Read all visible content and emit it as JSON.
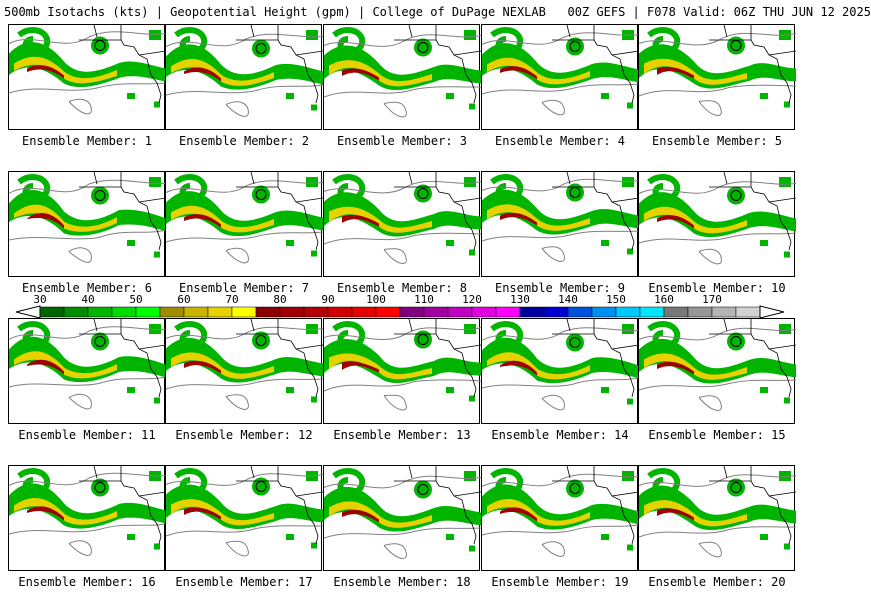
{
  "header": {
    "title": "500mb Isotachs (kts) | Geopotential Height (gpm) | College of DuPage NEXLAB   00Z GEFS | F078 Valid: 06Z THU JUN 12 2025"
  },
  "colorbar": {
    "labels": [
      "30",
      "40",
      "50",
      "60",
      "70",
      "80",
      "90",
      "100",
      "110",
      "120",
      "130",
      "140",
      "150",
      "160",
      "170"
    ],
    "colors": [
      "#006400",
      "#008c00",
      "#00b400",
      "#00dc00",
      "#00ff00",
      "#a08c00",
      "#c8b400",
      "#e6d200",
      "#ffff00",
      "#8c0000",
      "#a00000",
      "#b40000",
      "#d20000",
      "#e60000",
      "#ff0000",
      "#800080",
      "#a000a0",
      "#c000c0",
      "#e000e0",
      "#ff00ff",
      "#0000a0",
      "#0000d0",
      "#0050e0",
      "#0090f0",
      "#00c8ff",
      "#00e6ff",
      "#787878",
      "#969696",
      "#b4b4b4",
      "#d2d2d2"
    ]
  },
  "members": [
    {
      "label": "Ensemble Member: 1"
    },
    {
      "label": "Ensemble Member: 2"
    },
    {
      "label": "Ensemble Member: 3"
    },
    {
      "label": "Ensemble Member: 4"
    },
    {
      "label": "Ensemble Member: 5"
    },
    {
      "label": "Ensemble Member: 6"
    },
    {
      "label": "Ensemble Member: 7"
    },
    {
      "label": "Ensemble Member: 8"
    },
    {
      "label": "Ensemble Member: 9"
    },
    {
      "label": "Ensemble Member: 10"
    },
    {
      "label": "Ensemble Member: 11"
    },
    {
      "label": "Ensemble Member: 12"
    },
    {
      "label": "Ensemble Member: 13"
    },
    {
      "label": "Ensemble Member: 14"
    },
    {
      "label": "Ensemble Member: 15"
    },
    {
      "label": "Ensemble Member: 16"
    },
    {
      "label": "Ensemble Member: 17"
    },
    {
      "label": "Ensemble Member: 18"
    },
    {
      "label": "Ensemble Member: 19"
    },
    {
      "label": "Ensemble Member: 20"
    }
  ]
}
